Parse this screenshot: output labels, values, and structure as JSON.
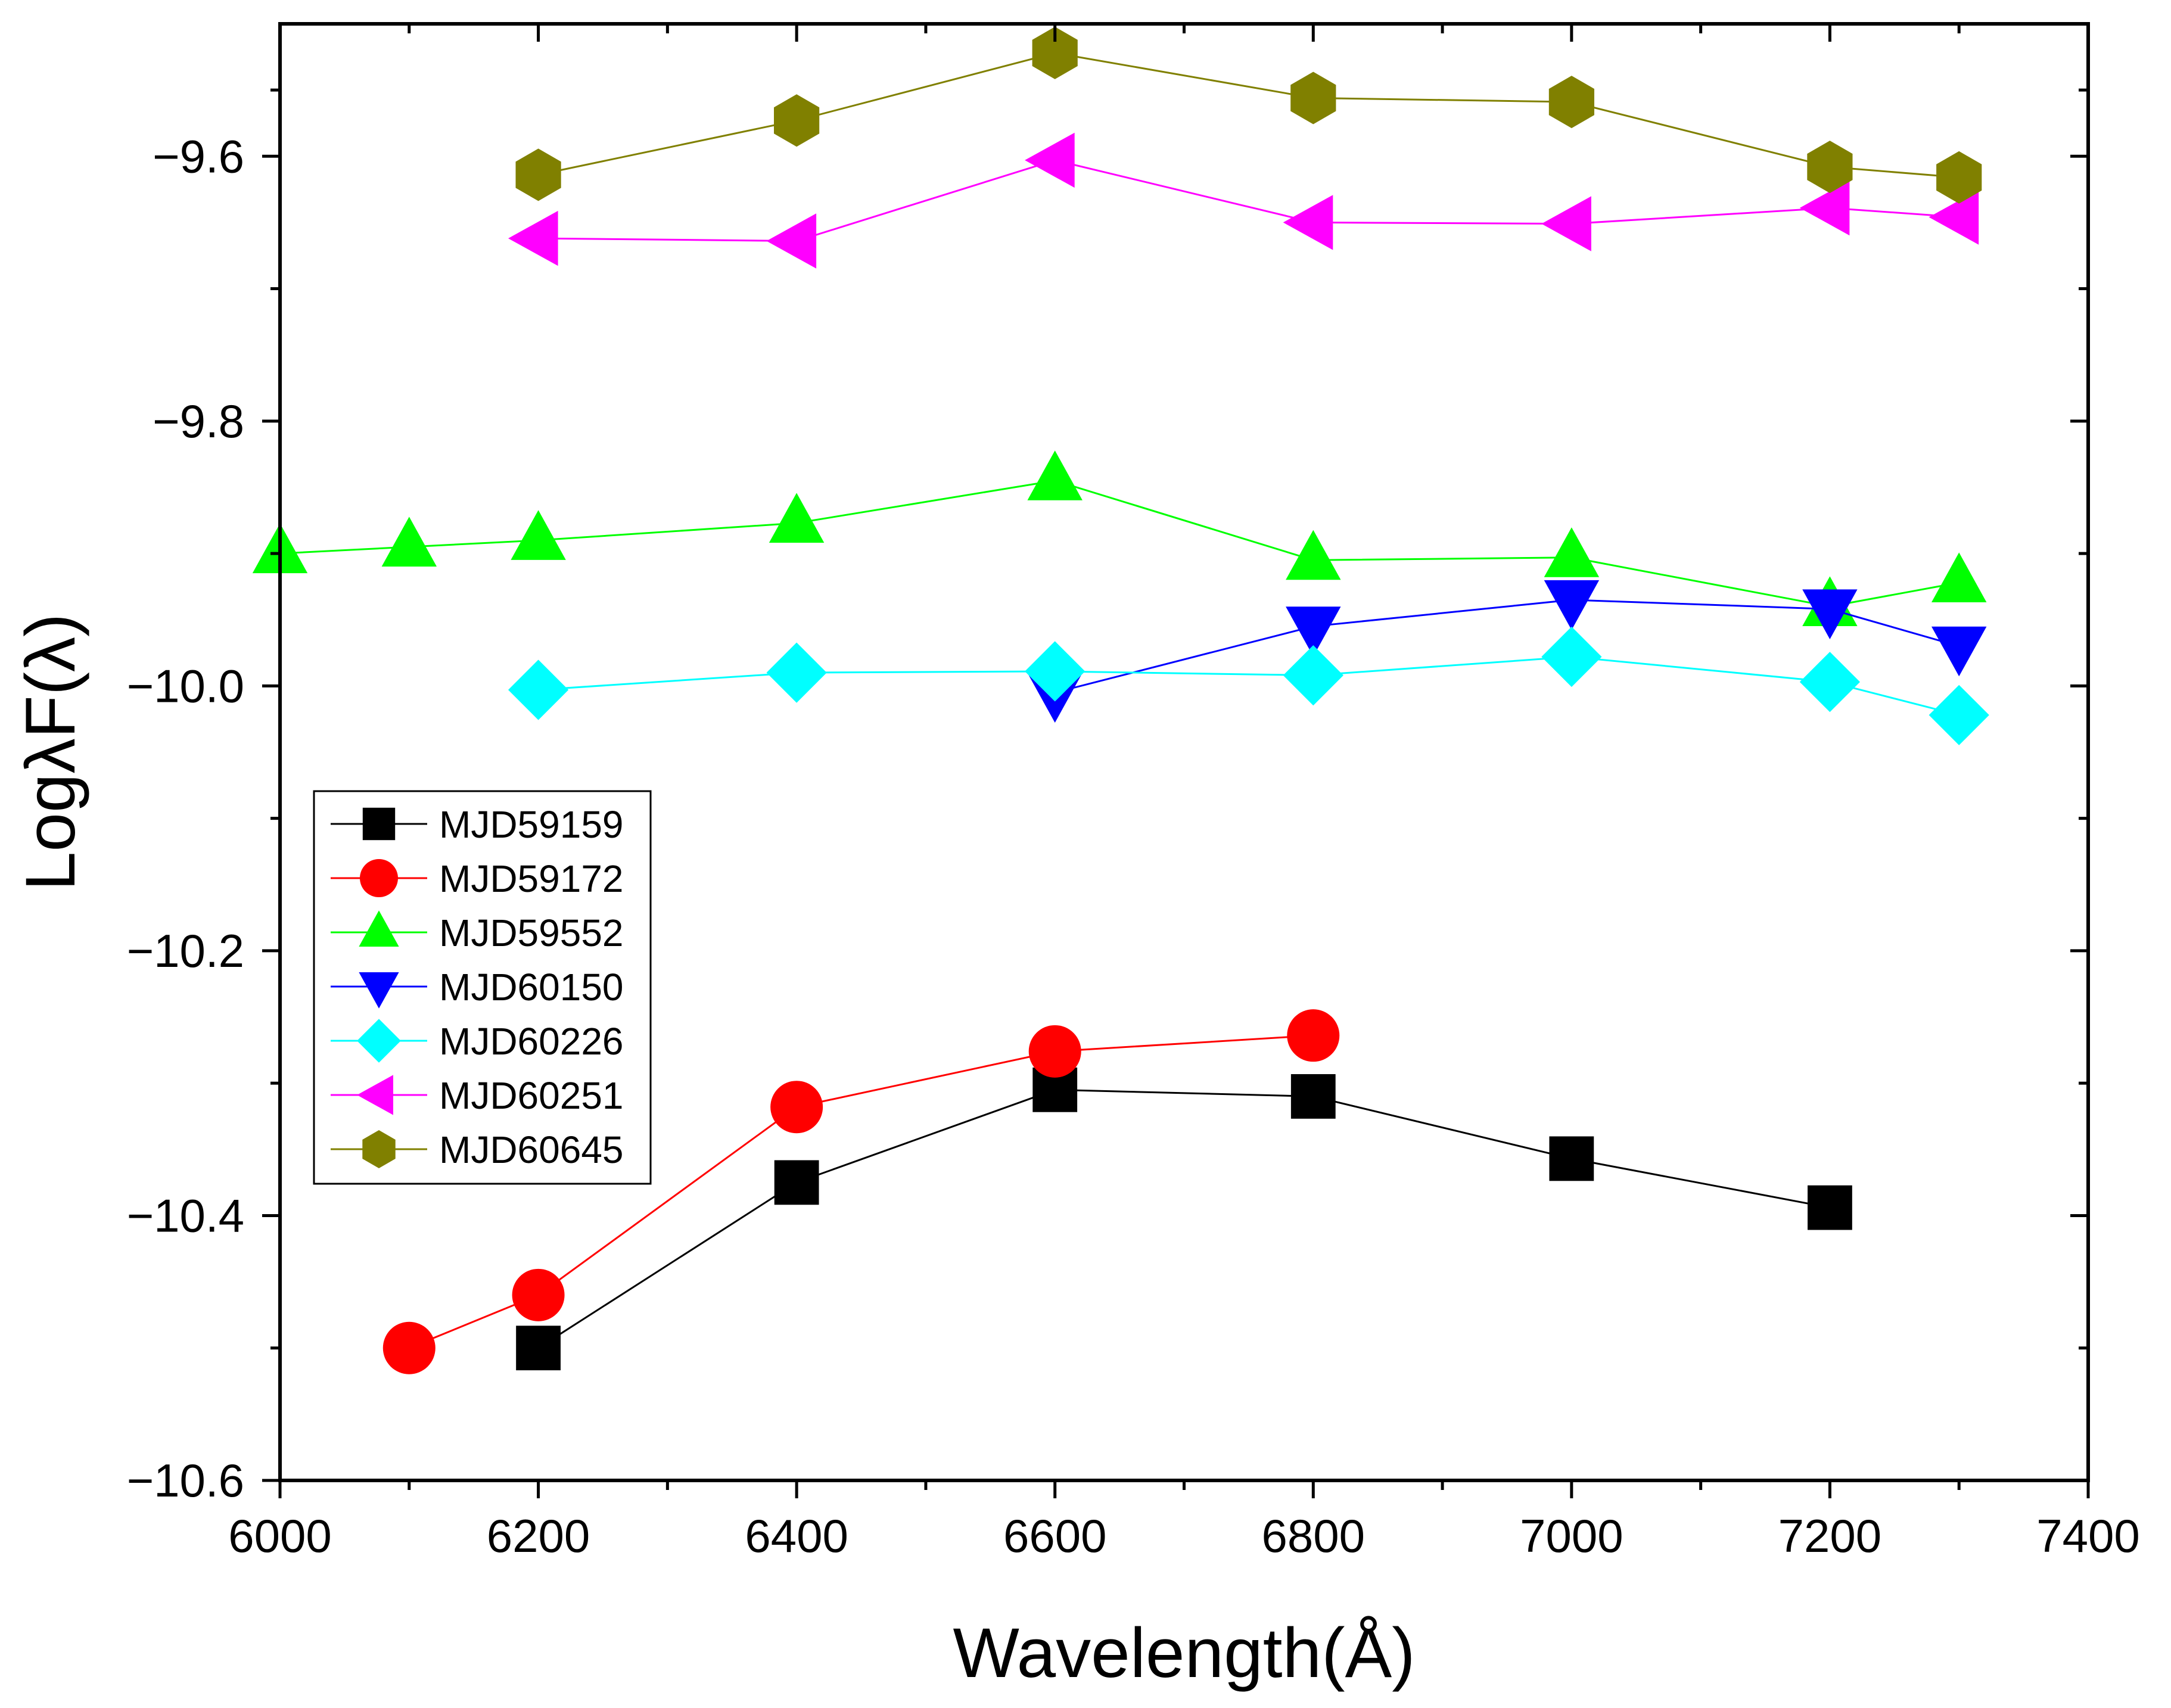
{
  "chart_data": {
    "type": "line",
    "title": "",
    "xlabel": "Wavelength(Å)",
    "ylabel": "LogλF(λ)",
    "xlim": [
      6000,
      7400
    ],
    "ylim": [
      -10.6,
      -9.5
    ],
    "x_ticks": [
      6000,
      6200,
      6400,
      6600,
      6800,
      7000,
      7200,
      7400
    ],
    "x_tick_labels": [
      "6000",
      "6200",
      "6400",
      "6600",
      "6800",
      "7000",
      "7200",
      "7400"
    ],
    "y_ticks": [
      -10.6,
      -10.4,
      -10.2,
      -10.0,
      -9.8,
      -9.6
    ],
    "y_tick_labels": [
      "−10.6",
      "−10.4",
      "−10.2",
      "−10.0",
      "−9.8",
      "−9.6"
    ],
    "grid": false,
    "legend_position": "lower-left",
    "series": [
      {
        "name": "MJD59159",
        "color": "#000000",
        "marker": "square",
        "x": [
          6200,
          6400,
          6600,
          6800,
          7000,
          7200
        ],
        "y": [
          -10.5,
          -10.375,
          -10.305,
          -10.31,
          -10.357,
          -10.394
        ]
      },
      {
        "name": "MJD59172",
        "color": "#ff0000",
        "marker": "circle",
        "x": [
          6100,
          6200,
          6400,
          6600,
          6800
        ],
        "y": [
          -10.5,
          -10.46,
          -10.318,
          -10.276,
          -10.264
        ]
      },
      {
        "name": "MJD59552",
        "color": "#00ff00",
        "marker": "triangle-up",
        "x": [
          6000,
          6100,
          6200,
          6400,
          6600,
          6800,
          7000,
          7200,
          7300
        ],
        "y": [
          -9.9,
          -9.895,
          -9.89,
          -9.877,
          -9.845,
          -9.905,
          -9.903,
          -9.94,
          -9.922
        ]
      },
      {
        "name": "MJD60150",
        "color": "#0000ff",
        "marker": "triangle-down",
        "x": [
          6600,
          6800,
          7000,
          7200,
          7300
        ],
        "y": [
          -10.005,
          -9.955,
          -9.935,
          -9.942,
          -9.97
        ]
      },
      {
        "name": "MJD60226",
        "color": "#00ffff",
        "marker": "diamond",
        "x": [
          6200,
          6400,
          6600,
          6800,
          7000,
          7200,
          7300
        ],
        "y": [
          -10.003,
          -9.99,
          -9.989,
          -9.992,
          -9.978,
          -9.997,
          -10.022
        ]
      },
      {
        "name": "MJD60251",
        "color": "#ff00ff",
        "marker": "triangle-left",
        "x": [
          6200,
          6400,
          6600,
          6800,
          7000,
          7200,
          7300
        ],
        "y": [
          -9.662,
          -9.664,
          -9.603,
          -9.65,
          -9.651,
          -9.639,
          -9.646
        ]
      },
      {
        "name": "MJD60645",
        "color": "#808000",
        "marker": "hexagon",
        "x": [
          6200,
          6400,
          6600,
          6800,
          7000,
          7200,
          7300
        ],
        "y": [
          -9.614,
          -9.573,
          -9.522,
          -9.556,
          -9.559,
          -9.608,
          -9.616
        ]
      }
    ]
  }
}
